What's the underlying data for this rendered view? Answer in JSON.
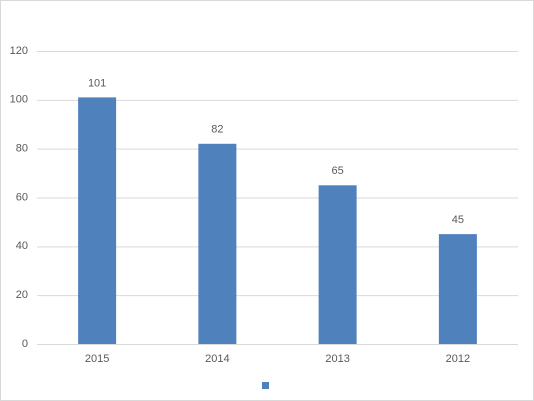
{
  "chart_data": {
    "type": "bar",
    "categories": [
      "2015",
      "2014",
      "2013",
      "2012"
    ],
    "values": [
      101,
      82,
      65,
      45
    ],
    "color": "#4f81bd",
    "ylim": [
      0,
      120
    ],
    "yticks": [
      0,
      20,
      40,
      60,
      80,
      100,
      120
    ],
    "grid": true,
    "data_labels": true,
    "legend": "bottom"
  }
}
